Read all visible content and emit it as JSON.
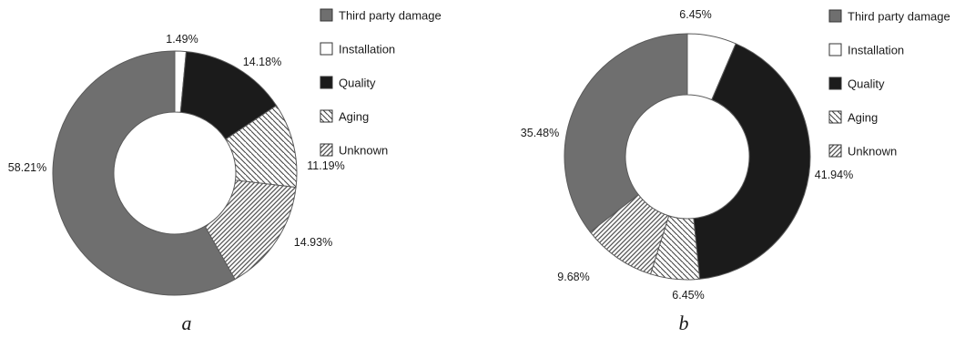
{
  "chart_data": [
    {
      "type": "pie",
      "caption": "a",
      "categories": [
        "Third party damage",
        "Installation",
        "Quality",
        "Aging",
        "Unknown"
      ],
      "values": [
        58.21,
        1.49,
        14.18,
        11.19,
        14.93
      ],
      "labels": [
        "58.21%",
        "1.49%",
        "14.18%",
        "11.19%",
        "14.93%"
      ],
      "legend": "right"
    },
    {
      "type": "pie",
      "caption": "b",
      "categories": [
        "Third party damage",
        "Installation",
        "Quality",
        "Aging",
        "Unknown"
      ],
      "values": [
        35.48,
        6.45,
        41.94,
        6.45,
        9.68
      ],
      "labels": [
        "35.48%",
        "6.45%",
        "41.94%",
        "6.45%",
        "9.68%"
      ],
      "legend": "right"
    }
  ],
  "styles": {
    "colors": {
      "Third party damage": "#6f6f6f",
      "Installation": "#ffffff",
      "Quality": "#1b1b1b",
      "Aging": "hatch-back",
      "Unknown": "hatch-forward"
    },
    "stroke": "#5a5a5a"
  }
}
